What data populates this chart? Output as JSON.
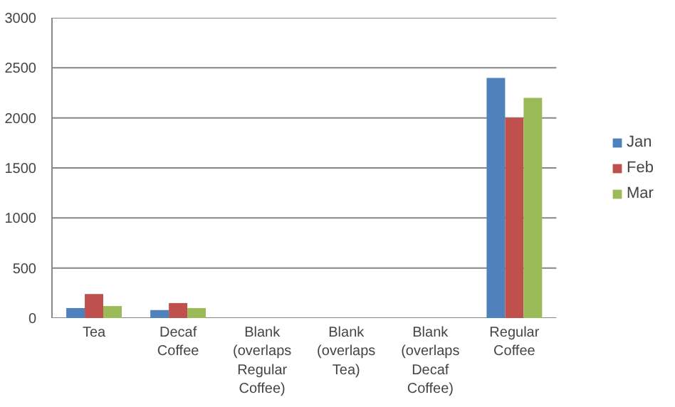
{
  "chart_data": {
    "type": "bar",
    "categories": [
      "Tea",
      "Decaf Coffee",
      "Blank (overlaps Regular Coffee)",
      "Blank (overlaps Tea)",
      "Blank (overlaps Decaf Coffee)",
      "Regular Coffee"
    ],
    "series": [
      {
        "name": "Jan",
        "color": "#4f81bd",
        "values": [
          100,
          80,
          null,
          null,
          null,
          2400
        ]
      },
      {
        "name": "Feb",
        "color": "#c0504d",
        "values": [
          240,
          150,
          null,
          null,
          null,
          2000
        ]
      },
      {
        "name": "Mar",
        "color": "#9bbb59",
        "values": [
          120,
          100,
          null,
          null,
          null,
          2200
        ]
      }
    ],
    "ylim": [
      0,
      3000
    ],
    "yticks": [
      0,
      500,
      1000,
      1500,
      2000,
      2500,
      3000
    ],
    "grid": "y",
    "legend": "right"
  }
}
